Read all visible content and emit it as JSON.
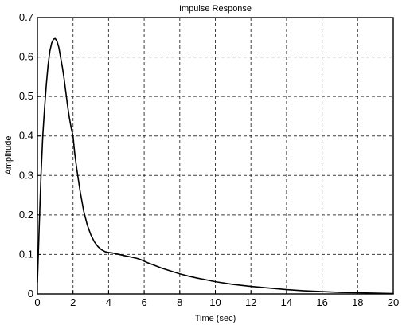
{
  "chart_data": {
    "type": "line",
    "title": "Impulse Response",
    "xlabel": "Time (sec)",
    "ylabel": "Amplitude",
    "xlim": [
      0,
      20
    ],
    "ylim": [
      0,
      0.7
    ],
    "xticks": [
      0,
      2,
      4,
      6,
      8,
      10,
      12,
      14,
      16,
      18,
      20
    ],
    "yticks": [
      0,
      0.1,
      0.2,
      0.3,
      0.4,
      0.5,
      0.6,
      0.7
    ],
    "grid": true,
    "colors": {
      "line": "#000000",
      "grid": "#000000",
      "background": "#ffffff"
    },
    "series": [
      {
        "x": [
          0,
          0.05,
          0.1,
          0.2,
          0.3,
          0.4,
          0.5,
          0.6,
          0.7,
          0.8,
          0.9,
          1.0,
          1.1,
          1.2,
          1.3,
          1.4,
          1.5,
          1.6,
          1.7,
          1.8,
          1.9,
          2.0,
          2.1,
          2.2,
          2.4,
          2.6,
          2.8,
          3.0,
          3.2,
          3.4,
          3.6,
          3.8,
          4.0,
          4.2,
          4.4,
          4.6,
          4.8,
          5.0,
          5.2,
          5.4,
          5.6,
          5.8,
          6.0,
          6.2,
          6.5,
          7.0,
          7.5,
          8.0,
          8.5,
          9.0,
          10.0,
          11.0,
          12.0,
          13.0,
          14.0,
          15.0,
          16.0,
          17.0,
          18.0,
          19.0,
          20.0
        ],
        "values": [
          0.03,
          0.1,
          0.17,
          0.3,
          0.4,
          0.47,
          0.53,
          0.58,
          0.615,
          0.635,
          0.645,
          0.647,
          0.64,
          0.625,
          0.6,
          0.575,
          0.545,
          0.51,
          0.475,
          0.445,
          0.42,
          0.4,
          0.355,
          0.32,
          0.26,
          0.21,
          0.175,
          0.15,
          0.132,
          0.12,
          0.112,
          0.107,
          0.105,
          0.104,
          0.102,
          0.1,
          0.098,
          0.096,
          0.094,
          0.092,
          0.09,
          0.087,
          0.083,
          0.079,
          0.074,
          0.065,
          0.058,
          0.051,
          0.045,
          0.04,
          0.031,
          0.024,
          0.019,
          0.015,
          0.011,
          0.008,
          0.006,
          0.004,
          0.003,
          0.002,
          0.001
        ]
      }
    ]
  }
}
